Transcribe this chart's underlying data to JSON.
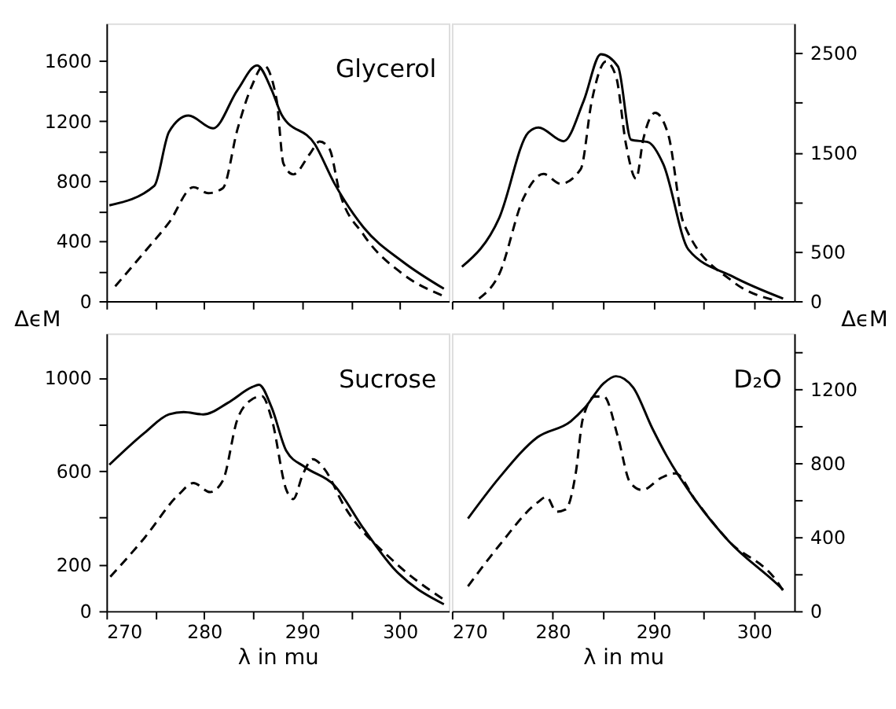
{
  "chart_data": [
    {
      "type": "line",
      "ylabel": "ΔϵM",
      "annotations": [
        "Glycerol"
      ],
      "xlim": [
        270,
        305
      ],
      "ylim": [
        0,
        1850
      ],
      "tick_labels": "y",
      "grid": false,
      "xticks": [
        270,
        {
          "value": 275,
          "label": null
        },
        280,
        {
          "value": 285,
          "label": null
        },
        290,
        {
          "value": 295,
          "label": null
        },
        300
      ],
      "yticks": [
        0,
        {
          "value": 200,
          "label": null
        },
        400,
        {
          "value": 600,
          "label": null
        },
        800,
        {
          "value": 1000,
          "label": null
        },
        1200,
        {
          "value": 1400,
          "label": null
        },
        1600
      ],
      "series": [
        {
          "color": "#000000",
          "line_style": "solid",
          "x": [
            270.3,
            274.9,
            276.4,
            278.4,
            280.9,
            283.4,
            285.4,
            286.9,
            287.9,
            291.3,
            293.3,
            296.3,
            300.3,
            304.5
          ],
          "values": [
            638,
            768,
            1128,
            1236,
            1151,
            1406,
            1570,
            1406,
            1243,
            1046,
            785,
            490,
            262,
            82
          ]
        },
        {
          "color": "#000000",
          "line_style": "dashed",
          "x": [
            270.9,
            273.9,
            276.4,
            278.9,
            280.4,
            281.9,
            283.4,
            284.9,
            286.1,
            287.4,
            288.1,
            289.1,
            290.8,
            291.8,
            292.8,
            293.8,
            296.3,
            300.3,
            304.5
          ],
          "values": [
            98,
            327,
            523,
            759,
            719,
            752,
            1145,
            1439,
            1570,
            1341,
            916,
            844,
            981,
            1063,
            1014,
            736,
            441,
            180,
            33
          ]
        }
      ]
    },
    {
      "type": "line",
      "y2label": "ΔϵM",
      "xlim": [
        270,
        304
      ],
      "y2lim": [
        0,
        2800
      ],
      "tick_labels": "y",
      "grid": false,
      "xticks": [
        270,
        {
          "value": 275,
          "label": null
        },
        280,
        {
          "value": 285,
          "label": null
        },
        290,
        {
          "value": 295,
          "label": null
        },
        300
      ],
      "y2ticks": [
        0,
        500,
        {
          "value": 1000,
          "label": null
        },
        1500,
        {
          "value": 2000,
          "label": null
        },
        2500
      ],
      "series": [
        {
          "color": "#000000",
          "line_style": "solid",
          "axis": "y2",
          "x": [
            271.0,
            274.7,
            277.6,
            278.6,
            281.1,
            283.1,
            284.8,
            286.5,
            287.8,
            289.5,
            291.0,
            293.5,
            297.9,
            302.9
          ],
          "values": [
            345,
            838,
            1701,
            1750,
            1612,
            2021,
            2490,
            2366,
            1627,
            1602,
            1380,
            518,
            247,
            25
          ]
        },
        {
          "color": "#000000",
          "line_style": "dashed",
          "axis": "y2",
          "x": [
            272.7,
            274.7,
            277.1,
            279.1,
            280.8,
            282.8,
            283.9,
            285.3,
            286.3,
            287.3,
            288.3,
            289.0,
            290.2,
            291.5,
            293.0,
            297.9,
            302.4
          ],
          "values": [
            25,
            271,
            1035,
            1282,
            1183,
            1331,
            2021,
            2416,
            2268,
            1578,
            1233,
            1627,
            1898,
            1676,
            789,
            197,
            0
          ]
        }
      ]
    },
    {
      "type": "line",
      "xlabel": "λ in mu",
      "annotations": [
        "Sucrose"
      ],
      "xlim": [
        270,
        305
      ],
      "ylim": [
        0,
        1190
      ],
      "grid": false,
      "xticks": [
        270,
        {
          "value": 275,
          "label": null
        },
        280,
        {
          "value": 285,
          "label": null
        },
        290,
        {
          "value": 295,
          "label": null
        },
        300
      ],
      "yticks": [
        0,
        200,
        {
          "value": 400,
          "label": null
        },
        600,
        {
          "value": 800,
          "label": null
        },
        1000
      ],
      "series": [
        {
          "color": "#000000",
          "line_style": "solid",
          "x": [
            270.3,
            273.9,
            276.4,
            277.9,
            279.9,
            282.4,
            284.9,
            285.6,
            286.9,
            288.4,
            290.3,
            293.3,
            296.3,
            299.3,
            304.5
          ],
          "values": [
            627,
            764,
            843,
            853,
            843,
            892,
            960,
            970,
            872,
            686,
            617,
            539,
            353,
            186,
            29
          ]
        },
        {
          "color": "#000000",
          "line_style": "dashed",
          "x": [
            270.4,
            273.9,
            277.4,
            278.9,
            280.6,
            281.9,
            283.4,
            284.4,
            285.9,
            286.9,
            288.4,
            289.1,
            290.1,
            291.1,
            292.3,
            294.3,
            299.3,
            304.5
          ],
          "values": [
            147,
            314,
            500,
            549,
            510,
            559,
            823,
            892,
            921,
            823,
            519,
            480,
            588,
            651,
            608,
            451,
            216,
            49
          ]
        }
      ]
    },
    {
      "type": "line",
      "xlabel": "λ in mu",
      "annotations": [
        "D₂O"
      ],
      "xlim": [
        270,
        304
      ],
      "y2lim": [
        0,
        1500
      ],
      "grid": false,
      "xticks": [
        270,
        {
          "value": 275,
          "label": null
        },
        280,
        {
          "value": 285,
          "label": null
        },
        290,
        {
          "value": 295,
          "label": null
        },
        300
      ],
      "y2ticks": [
        0,
        {
          "value": 200,
          "label": null
        },
        400,
        {
          "value": 600,
          "label": null
        },
        800,
        {
          "value": 1000,
          "label": null
        },
        1200,
        {
          "value": 1400,
          "label": null
        }
      ],
      "series": [
        {
          "color": "#000000",
          "line_style": "solid",
          "axis": "y2",
          "x": [
            271.6,
            274.7,
            278.5,
            281.8,
            283.2,
            285.1,
            286.3,
            288.0,
            289.9,
            291.3,
            294.2,
            297.5,
            302.3,
            302.9
          ],
          "values": [
            500,
            720,
            939,
            1025,
            1098,
            1232,
            1269,
            1208,
            988,
            842,
            598,
            378,
            146,
            115
          ]
        },
        {
          "color": "#000000",
          "line_style": "dashed",
          "axis": "y2",
          "x": [
            271.6,
            274.7,
            278.5,
            279.4,
            280.4,
            281.3,
            282.3,
            283.0,
            284.2,
            285.1,
            286.5,
            287.7,
            288.9,
            290.8,
            292.2,
            294.2,
            297.5,
            302.3,
            302.9
          ],
          "values": [
            134,
            354,
            586,
            617,
            537,
            549,
            744,
            1037,
            1159,
            1159,
            939,
            695,
            654,
            720,
            744,
            598,
            378,
            159,
            110
          ]
        }
      ]
    }
  ]
}
